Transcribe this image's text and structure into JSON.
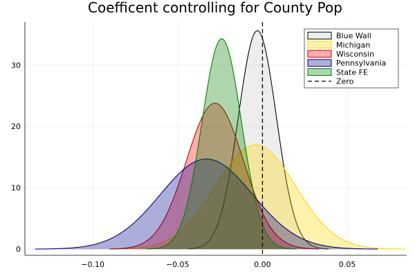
{
  "chart_data": {
    "type": "area",
    "title": "Coefficent controlling for County Pop",
    "xlabel": "",
    "ylabel": "",
    "xlim": [
      -0.14,
      0.085
    ],
    "ylim": [
      -1,
      37
    ],
    "x_ticks": [
      {
        "value": -0.1,
        "label": "−0.10"
      },
      {
        "value": -0.05,
        "label": "−0.05"
      },
      {
        "value": 0.0,
        "label": "0.00"
      },
      {
        "value": 0.05,
        "label": "0.05"
      }
    ],
    "y_ticks": [
      {
        "value": 0,
        "label": "0"
      },
      {
        "value": 10,
        "label": "10"
      },
      {
        "value": 20,
        "label": "20"
      },
      {
        "value": 30,
        "label": "30"
      }
    ],
    "grid": true,
    "legend_position": "top-right",
    "series": [
      {
        "name": "Blue Wall",
        "kind": "density",
        "mean": -0.003,
        "peak": 35.6,
        "sd": 0.0112,
        "x_range": [
          -0.044,
          0.039
        ],
        "fill": "#c8c8c8",
        "stroke": "#000000"
      },
      {
        "name": "Michigan",
        "kind": "density",
        "mean": -0.004,
        "peak": 17.0,
        "sd": 0.0235,
        "x_range": [
          -0.09,
          0.084
        ],
        "fill": "#ffd700",
        "stroke": "#ffd700"
      },
      {
        "name": "Wisconsin",
        "kind": "density",
        "mean": -0.028,
        "peak": 23.8,
        "sd": 0.0168,
        "x_range": [
          -0.09,
          0.033
        ],
        "fill": "#ff0000",
        "stroke": "#cc0000"
      },
      {
        "name": "Pennsylvania",
        "kind": "density",
        "mean": -0.033,
        "peak": 14.7,
        "sd": 0.0272,
        "x_range": [
          -0.134,
          0.068
        ],
        "fill": "#00008b",
        "stroke": "#00008b"
      },
      {
        "name": "State FE",
        "kind": "density",
        "mean": -0.024,
        "peak": 34.3,
        "sd": 0.0116,
        "x_range": [
          -0.068,
          0.02
        ],
        "fill": "#008000",
        "stroke": "#008000"
      },
      {
        "name": "Zero",
        "kind": "vline",
        "x": 0.0,
        "stroke": "#000000",
        "dash": true
      }
    ]
  }
}
